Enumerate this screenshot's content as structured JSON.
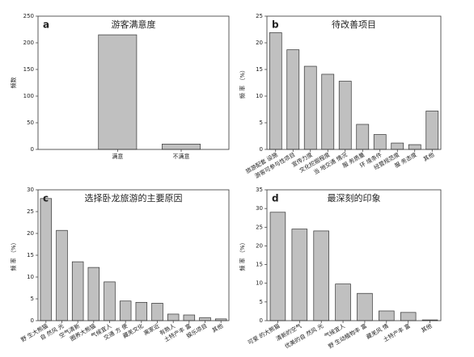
{
  "chart_data": [
    {
      "type": "bar",
      "label": "a",
      "title": "游客满意度",
      "ylabel": "频数",
      "color": "#c0c0c0",
      "categories": [
        "满意",
        "不满意"
      ],
      "values": [
        215,
        10
      ],
      "ylim": [
        0,
        250
      ],
      "yticks": [
        0,
        50,
        100,
        150,
        200,
        250
      ]
    },
    {
      "type": "bar",
      "label": "b",
      "title": "待改善项目",
      "ylabel": "频 率 （%）",
      "color": "#c0c0c0",
      "categories": [
        "旅游配套 设施",
        "游客可参与性项目",
        "宣传力度",
        "文化挖掘程度",
        "当 地交通 情况",
        "服 务质量",
        "环 境条件",
        "经营规范度",
        "服 务态度",
        "其他"
      ],
      "values": [
        21.9,
        18.7,
        15.6,
        14.1,
        12.8,
        4.7,
        2.8,
        1.2,
        0.9,
        7.2
      ],
      "ylim": [
        0,
        25
      ],
      "yticks": [
        0,
        5,
        10,
        15,
        20,
        25
      ]
    },
    {
      "type": "bar",
      "label": "c",
      "title": "选择卧龙旅游的主要原因",
      "ylabel": "频 率 （%）",
      "color": "#c0c0c0",
      "categories": [
        "野 生大熊猫",
        "自 然风 光",
        "空气清新",
        "圈养大熊猫",
        "气候宜人",
        "交通 方 便",
        "藏羌文化",
        "离家近",
        "有熟人",
        "土特产丰 富",
        "娱乐项目",
        "其他"
      ],
      "values": [
        28,
        20.7,
        13.5,
        12.2,
        8.9,
        4.5,
        4.2,
        4.0,
        1.5,
        1.3,
        0.7,
        0.4
      ],
      "ylim": [
        0,
        30
      ],
      "yticks": [
        0,
        5,
        10,
        15,
        20,
        25,
        30
      ]
    },
    {
      "type": "bar",
      "label": "d",
      "title": "最深刻的印象",
      "ylabel": "频 率 （%）",
      "color": "#c0c0c0",
      "categories": [
        "可爱 的大熊猫",
        "清新的空气",
        "优美的自 然风 光",
        "气候宜人",
        "野 生动植物丰 富",
        "藏羌风 情",
        "土特产丰 富",
        "其他"
      ],
      "values": [
        29,
        24.5,
        24,
        9.8,
        7.3,
        2.6,
        2.2,
        0.2
      ],
      "ylim": [
        0,
        35
      ],
      "yticks": [
        0,
        5,
        10,
        15,
        20,
        25,
        30,
        35
      ]
    }
  ]
}
